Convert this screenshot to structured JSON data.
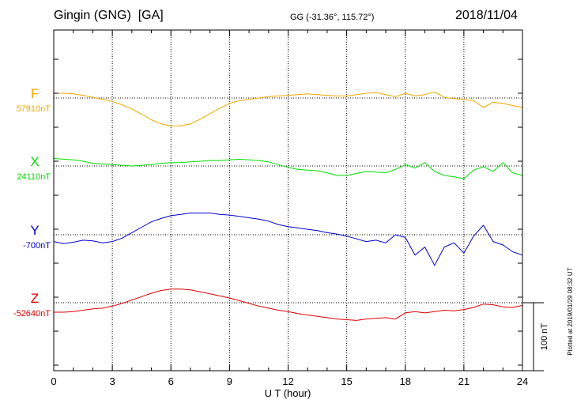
{
  "header": {
    "station": "Gingin (GNG)  [GA]",
    "coords": "GG (-31.36°, 115.72°)",
    "date": "2018/11/04"
  },
  "footer": {
    "plotted": "Plotted at 2019/01/29 08:32 UT",
    "scale_label": "100 nT"
  },
  "chart_data": {
    "type": "line",
    "title": "Gingin (GNG)  [GA]",
    "xlabel": "U T (hour)",
    "ylabel": "",
    "xlim": [
      0,
      24
    ],
    "x_ticks": [
      0,
      3,
      6,
      9,
      12,
      15,
      18,
      21,
      24
    ],
    "x_tick_labels": [
      "0",
      "3",
      "6",
      "9",
      "12",
      "15",
      "18",
      "21",
      "24"
    ],
    "grid": true,
    "scale_bar_nT": 100,
    "series": [
      {
        "name": "F",
        "baseline_label": "57910nT",
        "baseline_nT": 57910,
        "color": "#f0a800",
        "x": [
          0,
          0.5,
          1,
          1.5,
          2,
          2.5,
          3,
          3.5,
          4,
          4.5,
          5,
          5.5,
          6,
          6.5,
          7,
          7.5,
          8,
          8.5,
          9,
          9.5,
          10,
          10.5,
          11,
          11.5,
          12,
          12.5,
          13,
          13.5,
          14,
          14.5,
          15,
          15.5,
          16,
          16.5,
          17,
          17.5,
          18,
          18.5,
          19,
          19.5,
          20,
          20.5,
          21,
          21.5,
          22,
          22.5,
          23,
          23.5,
          24
        ],
        "y": [
          57917,
          57917,
          57916,
          57914,
          57911,
          57908,
          57905,
          57900,
          57894,
          57886,
          57878,
          57872,
          57869,
          57869,
          57872,
          57879,
          57887,
          57895,
          57902,
          57906,
          57908,
          57910,
          57912,
          57913,
          57914,
          57915,
          57916,
          57915,
          57914,
          57913,
          57913,
          57915,
          57917,
          57918,
          57915,
          57912,
          57917,
          57913,
          57915,
          57919,
          57911,
          57909,
          57908,
          57906,
          57896,
          57904,
          57902,
          57899,
          57896
        ]
      },
      {
        "name": "X",
        "baseline_label": "24110nT",
        "baseline_nT": 24110,
        "color": "#00dd00",
        "x": [
          0,
          0.5,
          1,
          1.5,
          2,
          2.5,
          3,
          3.5,
          4,
          4.5,
          5,
          5.5,
          6,
          6.5,
          7,
          7.5,
          8,
          8.5,
          9,
          9.5,
          10,
          10.5,
          11,
          11.5,
          12,
          12.5,
          13,
          13.5,
          14,
          14.5,
          15,
          15.5,
          16,
          16.5,
          17,
          17.5,
          18,
          18.5,
          19,
          19.5,
          20,
          20.5,
          21,
          21.5,
          22,
          22.5,
          23,
          23.5,
          24
        ],
        "y": [
          24121,
          24120,
          24119,
          24117,
          24114,
          24113,
          24112,
          24111,
          24110,
          24111,
          24112,
          24114,
          24115,
          24115,
          24116,
          24117,
          24118,
          24118,
          24119,
          24120,
          24119,
          24118,
          24116,
          24112,
          24108,
          24105,
          24104,
          24103,
          24100,
          24096,
          24096,
          24099,
          24102,
          24101,
          24100,
          24105,
          24112,
          24107,
          24115,
          24102,
          24096,
          24094,
          24091,
          24104,
          24109,
          24102,
          24115,
          24100,
          24096
        ]
      },
      {
        "name": "Y",
        "baseline_label": "-700nT",
        "baseline_nT": -700,
        "color": "#0000cc",
        "x": [
          0,
          0.5,
          1,
          1.5,
          2,
          2.5,
          3,
          3.5,
          4,
          4.5,
          5,
          5.5,
          6,
          6.5,
          7,
          7.5,
          8,
          8.5,
          9,
          9.5,
          10,
          10.5,
          11,
          11.5,
          12,
          12.5,
          13,
          13.5,
          14,
          14.5,
          15,
          15.5,
          16,
          16.5,
          17,
          17.5,
          18,
          18.5,
          19,
          19.5,
          20,
          20.5,
          21,
          21.5,
          22,
          22.5,
          23,
          23.5,
          24
        ],
        "y": [
          -710,
          -713,
          -711,
          -708,
          -709,
          -712,
          -710,
          -705,
          -697,
          -689,
          -681,
          -676,
          -672,
          -670,
          -668,
          -668,
          -668,
          -670,
          -671,
          -673,
          -675,
          -677,
          -680,
          -685,
          -688,
          -690,
          -692,
          -694,
          -697,
          -699,
          -702,
          -706,
          -710,
          -708,
          -712,
          -700,
          -704,
          -730,
          -718,
          -745,
          -718,
          -712,
          -727,
          -702,
          -686,
          -710,
          -715,
          -725,
          -730
        ]
      },
      {
        "name": "Z",
        "baseline_label": "-52640nT",
        "baseline_nT": -52640,
        "color": "#dd0000",
        "x": [
          0,
          0.5,
          1,
          1.5,
          2,
          2.5,
          3,
          3.5,
          4,
          4.5,
          5,
          5.5,
          6,
          6.5,
          7,
          7.5,
          8,
          8.5,
          9,
          9.5,
          10,
          10.5,
          11,
          11.5,
          12,
          12.5,
          13,
          13.5,
          14,
          14.5,
          15,
          15.5,
          16,
          16.5,
          17,
          17.5,
          18,
          18.5,
          19,
          19.5,
          20,
          20.5,
          21,
          21.5,
          22,
          22.5,
          23,
          23.5,
          24
        ],
        "y": [
          -52654,
          -52654,
          -52653,
          -52651,
          -52649,
          -52648,
          -52645,
          -52641,
          -52636,
          -52631,
          -52626,
          -52622,
          -52620,
          -52620,
          -52621,
          -52624,
          -52627,
          -52630,
          -52633,
          -52637,
          -52641,
          -52645,
          -52648,
          -52651,
          -52653,
          -52656,
          -52658,
          -52660,
          -52662,
          -52664,
          -52665,
          -52666,
          -52664,
          -52663,
          -52662,
          -52664,
          -52655,
          -52653,
          -52655,
          -52653,
          -52651,
          -52652,
          -52650,
          -52647,
          -52642,
          -52643,
          -52646,
          -52647,
          -52644
        ]
      }
    ]
  }
}
